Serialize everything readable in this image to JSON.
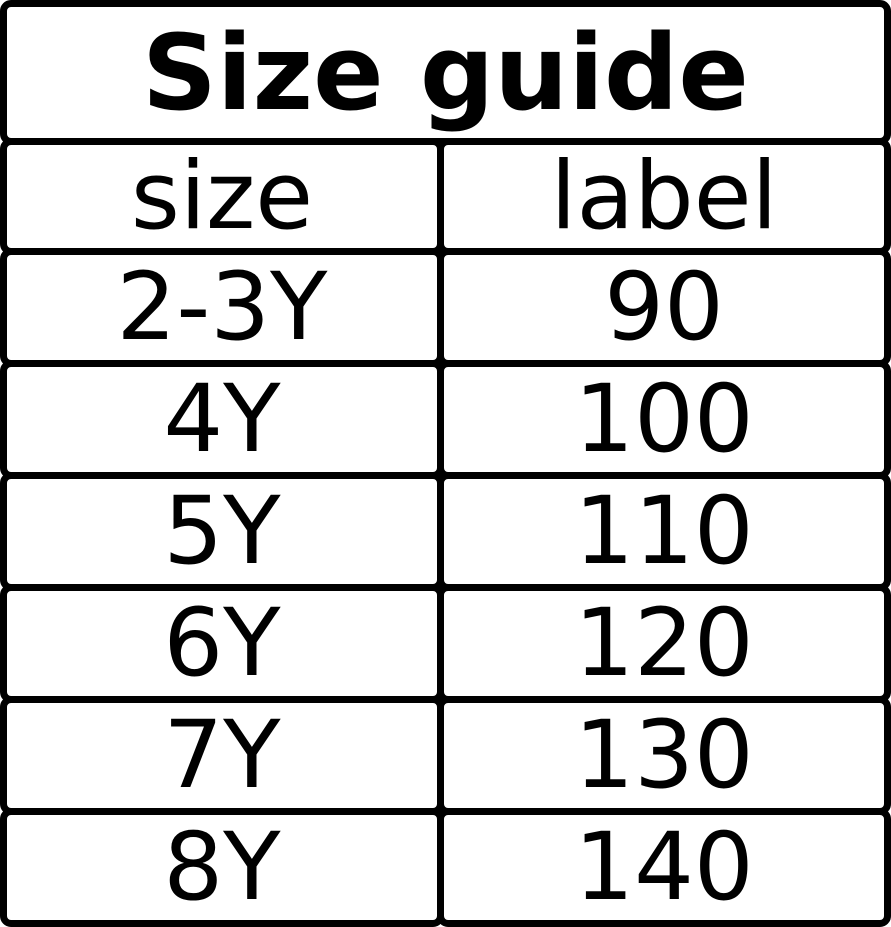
{
  "chart_data": {
    "type": "table",
    "title": "Size guide",
    "columns": [
      "size",
      "label"
    ],
    "rows": [
      [
        "2-3Y",
        "90"
      ],
      [
        "4Y",
        "100"
      ],
      [
        "5Y",
        "110"
      ],
      [
        "6Y",
        "120"
      ],
      [
        "7Y",
        "130"
      ],
      [
        "8Y",
        "140"
      ]
    ]
  },
  "colors": {
    "border": "#000000",
    "background": "#ffffff",
    "text": "#000000"
  }
}
